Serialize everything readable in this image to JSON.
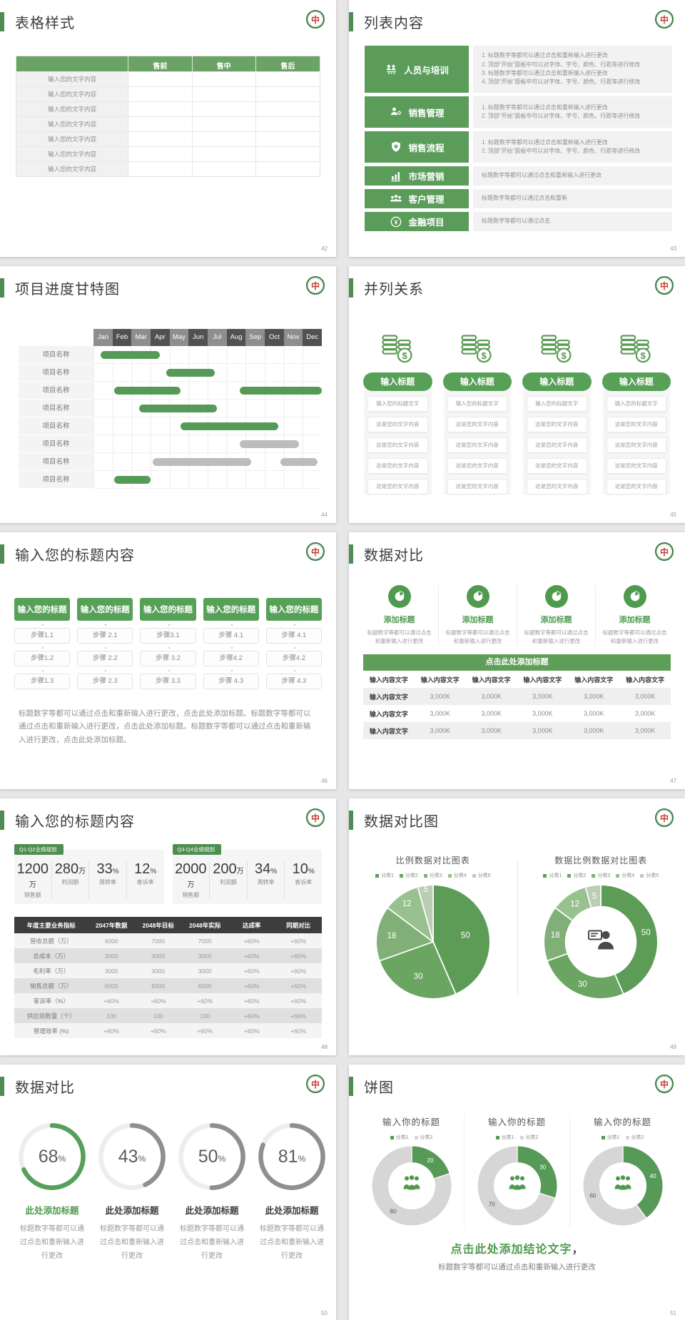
{
  "theme": {
    "green": "#579a57",
    "green_dark": "#4e8e50",
    "green_table": "#6ba266",
    "bar_gray": "#bcbcbc",
    "pie_gray": "#d6d6d6",
    "pie_greens": [
      "#5d9c57",
      "#6aa562",
      "#80b077",
      "#99c18f",
      "#bccdb6"
    ]
  },
  "slides": [
    {
      "title": "表格样式",
      "page": "42",
      "table": {
        "headers": [
          "",
          "售前",
          "售中",
          "售后"
        ],
        "row_label": "输入您的文字内容"
      }
    },
    {
      "title": "列表内容",
      "page": "43",
      "items": [
        {
          "label": "人员与培训",
          "icon": "people-training-icon",
          "lines": [
            "1.  标题数字等都可以通过点击和重新输入进行更改",
            "2.  顶部“开始”面板中可以对字体、字号、颜色、行距等进行修改",
            "3.  标题数字等都可以通过点击和重新输入进行更改",
            "4.  顶部“开始”面板中可以对字体、字号、颜色、行距等进行修改"
          ]
        },
        {
          "label": "销售管理",
          "icon": "person-gear-icon",
          "lines": [
            "1.  标题数字等都可以通过点击和重新输入进行更改",
            "2.  顶部“开始”面板中可以对字体、字号、颜色、行距等进行修改"
          ]
        },
        {
          "label": "销售流程",
          "icon": "shield-icon",
          "lines": [
            "1.  标题数字等都可以通过点击和重新输入进行更改",
            "2.  顶部“开始”面板中可以对字体、字号、颜色、行距等进行修改"
          ]
        },
        {
          "label": "市场营销",
          "icon": "bar-chart-icon",
          "lines": [
            "标题数字等都可以通过点击和重新输入进行更改"
          ]
        },
        {
          "label": "客户管理",
          "icon": "customers-icon",
          "lines": [
            "标题数字等都可以通过点击和重新"
          ]
        },
        {
          "label": "金融项目",
          "icon": "coin-icon",
          "lines": [
            "标题数字等都可以通过点击"
          ]
        }
      ]
    },
    {
      "title": "项目进度甘特图",
      "page": "44",
      "gantt": {
        "months": [
          "Jan",
          "Feb",
          "Mar",
          "Apr",
          "May",
          "Jun",
          "Jul",
          "Aug",
          "Sep",
          "Oct",
          "Nov",
          "Dec"
        ],
        "row_label": "项目名称",
        "rows": [
          [
            {
              "s": 3,
              "e": 29,
              "c": "g"
            }
          ],
          [
            {
              "s": 32,
              "e": 53,
              "c": "g"
            }
          ],
          [
            {
              "s": 9,
              "e": 38,
              "c": "g"
            },
            {
              "s": 64,
              "e": 100,
              "c": "g"
            }
          ],
          [
            {
              "s": 20,
              "e": 54,
              "c": "g"
            }
          ],
          [
            {
              "s": 38,
              "e": 81,
              "c": "g"
            }
          ],
          [
            {
              "s": 64,
              "e": 90,
              "c": "x"
            }
          ],
          [
            {
              "s": 26,
              "e": 69,
              "c": "x"
            },
            {
              "s": 82,
              "e": 98,
              "c": "x"
            }
          ],
          [
            {
              "s": 9,
              "e": 25,
              "c": "g"
            }
          ]
        ]
      }
    },
    {
      "title": "并列关系",
      "page": "45",
      "pill_label": "输入标题",
      "coins_icon": "coins-dollar-icon",
      "rows": [
        "输入您的标题文字",
        "这是您的文字内容",
        "这是您的文字内容",
        "这是您的文字内容",
        "这是您的文字内容"
      ]
    },
    {
      "title": "输入您的标题内容",
      "page": "46",
      "header_label": "输入您的标题",
      "columns": [
        [
          "步骤1.1",
          "步骤1.2",
          "步骤1.3"
        ],
        [
          "步骤 2.1",
          "步骤 2.2",
          "步骤 2.3"
        ],
        [
          "步骤3.1",
          "步骤 3.2",
          "步骤 3.3"
        ],
        [
          "步骤 4.1",
          "步骤4.2",
          "步骤 4.3"
        ],
        [
          "步骤 4.1",
          "步骤4.2",
          "步骤 4.3"
        ]
      ],
      "paragraph": "标题数字等都可以通过点击和重新输入进行更改，点击此处添加标题。标题数字等都可以通过点击和重新输入进行更改，点击此处添加标题。标题数字等都可以通过点击和重新输入进行更改，点击此处添加标题。"
    },
    {
      "title": "数据对比",
      "page": "47",
      "card_title": "添加标题",
      "card_icon": "pie-chart-icon",
      "card_desc": "标题数字等都可以通过点击和重新输入进行更改",
      "banner": "点击此处添加标题",
      "table": {
        "header_label": "输入内容文字",
        "row_label": "输入内容文字",
        "value": "3,000K"
      }
    },
    {
      "title": "输入您的标题内容",
      "page": "48",
      "kpi_groups": [
        {
          "badge": "Q1-Q2业绩规划",
          "stats": [
            {
              "value": "1200",
              "unit": "万",
              "label": "销售额"
            },
            {
              "value": "280",
              "unit": "万",
              "label": "利润额"
            },
            {
              "value": "33",
              "unit": "%",
              "label": "周转率"
            },
            {
              "value": "12",
              "unit": "%",
              "label": "客诉率"
            }
          ]
        },
        {
          "badge": "Q3-Q4业绩规划",
          "stats": [
            {
              "value": "2000",
              "unit": "万",
              "label": "销售额"
            },
            {
              "value": "200",
              "unit": "万",
              "label": "利润额"
            },
            {
              "value": "34",
              "unit": "%",
              "label": "周转率"
            },
            {
              "value": "10",
              "unit": "%",
              "label": "客诉率"
            }
          ]
        }
      ],
      "table": {
        "headers": [
          "年度主要业务指标",
          "2047年数据",
          "2048年目标",
          "2048年实际",
          "达成率",
          "同期对比"
        ],
        "rows": [
          [
            "营收总额（万）",
            "6000",
            "7000",
            "7000",
            "+60%",
            "+60%"
          ],
          [
            "总成本（万）",
            "3000",
            "3000",
            "3000",
            "+60%",
            "+60%"
          ],
          [
            "毛利率（万）",
            "3000",
            "3000",
            "3000",
            "+60%",
            "+60%"
          ],
          [
            "销售总额（万）",
            "6000",
            "6000",
            "6000",
            "+60%",
            "+60%"
          ],
          [
            "客诉率（%）",
            "+60%",
            "+60%",
            "+60%",
            "+60%",
            "+60%"
          ],
          [
            "供应商数量（个）",
            "100",
            "100",
            "100",
            "+60%",
            "+60%"
          ],
          [
            "管理效率 (%)",
            "+60%",
            "+60%",
            "+60%",
            "+60%",
            "+60%"
          ]
        ]
      }
    },
    {
      "title": "数据对比图",
      "page": "49",
      "charts": [
        {
          "type": "pie",
          "title": "比例数据对比图表",
          "legend": [
            "分类1",
            "分类2",
            "分类3",
            "分类4",
            "分类5"
          ],
          "values": [
            50,
            30,
            18,
            12,
            5
          ]
        },
        {
          "type": "donut",
          "title": "数据比例数据对比图表",
          "center_icon": "person-presenting-icon",
          "legend": [
            "分类1",
            "分类2",
            "分类3",
            "分类4",
            "分类5"
          ],
          "values": [
            50,
            30,
            18,
            12,
            5
          ]
        }
      ]
    },
    {
      "title": "数据对比",
      "page": "50",
      "pct_symbol": "%",
      "rings": [
        {
          "value": 68,
          "color": "#55a05a"
        },
        {
          "value": 43,
          "color": "#8f8f8f"
        },
        {
          "value": 50,
          "color": "#8f8f8f"
        },
        {
          "value": 81,
          "color": "#8f8f8f"
        }
      ],
      "item_title": "此处添加标题",
      "item_desc": "标题数字等都可以通过点击和重新输入进行更改"
    },
    {
      "title": "饼图",
      "page": "51",
      "donuts": [
        {
          "title": "输入你的标题",
          "legend": [
            "分类1",
            "分类2"
          ],
          "values": [
            20,
            80
          ],
          "center_icon": "people-group-icon"
        },
        {
          "title": "输入你的标题",
          "legend": [
            "分类1",
            "分类2"
          ],
          "values": [
            30,
            70
          ],
          "center_icon": "people-group-icon"
        },
        {
          "title": "输入你的标题",
          "legend": [
            "分类1",
            "分类2"
          ],
          "values": [
            40,
            60
          ],
          "center_icon": "people-group-icon"
        }
      ],
      "conclusion": "点击此处添加结论文字",
      "conclusion_comma": "，",
      "conclusion_sub": "标题数字等都可以通过点击和重新输入进行更改"
    }
  ],
  "chart_data": [
    {
      "type": "gantt",
      "title": "项目进度甘特图",
      "x_categories": [
        "Jan",
        "Feb",
        "Mar",
        "Apr",
        "May",
        "Jun",
        "Jul",
        "Aug",
        "Sep",
        "Oct",
        "Nov",
        "Dec"
      ],
      "rows": [
        "项目名称",
        "项目名称",
        "项目名称",
        "项目名称",
        "项目名称",
        "项目名称",
        "项目名称",
        "项目名称"
      ],
      "bars_pct_of_year": [
        [
          [
            3,
            29
          ]
        ],
        [
          [
            32,
            53
          ]
        ],
        [
          [
            9,
            38
          ],
          [
            64,
            100
          ]
        ],
        [
          [
            20,
            54
          ]
        ],
        [
          [
            38,
            81
          ]
        ],
        [
          [
            64,
            90
          ]
        ],
        [
          [
            26,
            69
          ],
          [
            82,
            98
          ]
        ],
        [
          [
            9,
            25
          ]
        ]
      ]
    },
    {
      "type": "pie",
      "title": "比例数据对比图表",
      "categories": [
        "分类1",
        "分类2",
        "分类3",
        "分类4",
        "分类5"
      ],
      "values": [
        50,
        30,
        18,
        12,
        5
      ]
    },
    {
      "type": "pie",
      "title": "数据比例数据对比图表",
      "categories": [
        "分类1",
        "分类2",
        "分类3",
        "分类4",
        "分类5"
      ],
      "values": [
        50,
        30,
        18,
        12,
        5
      ]
    },
    {
      "type": "pie",
      "title": "数据对比进度环",
      "values": [
        68,
        43,
        50,
        81
      ],
      "unit": "%"
    },
    {
      "type": "pie",
      "title": "饼图1",
      "categories": [
        "分类1",
        "分类2"
      ],
      "values": [
        20,
        80
      ]
    },
    {
      "type": "pie",
      "title": "饼图2",
      "categories": [
        "分类1",
        "分类2"
      ],
      "values": [
        30,
        70
      ]
    },
    {
      "type": "pie",
      "title": "饼图3",
      "categories": [
        "分类1",
        "分类2"
      ],
      "values": [
        40,
        60
      ]
    }
  ]
}
